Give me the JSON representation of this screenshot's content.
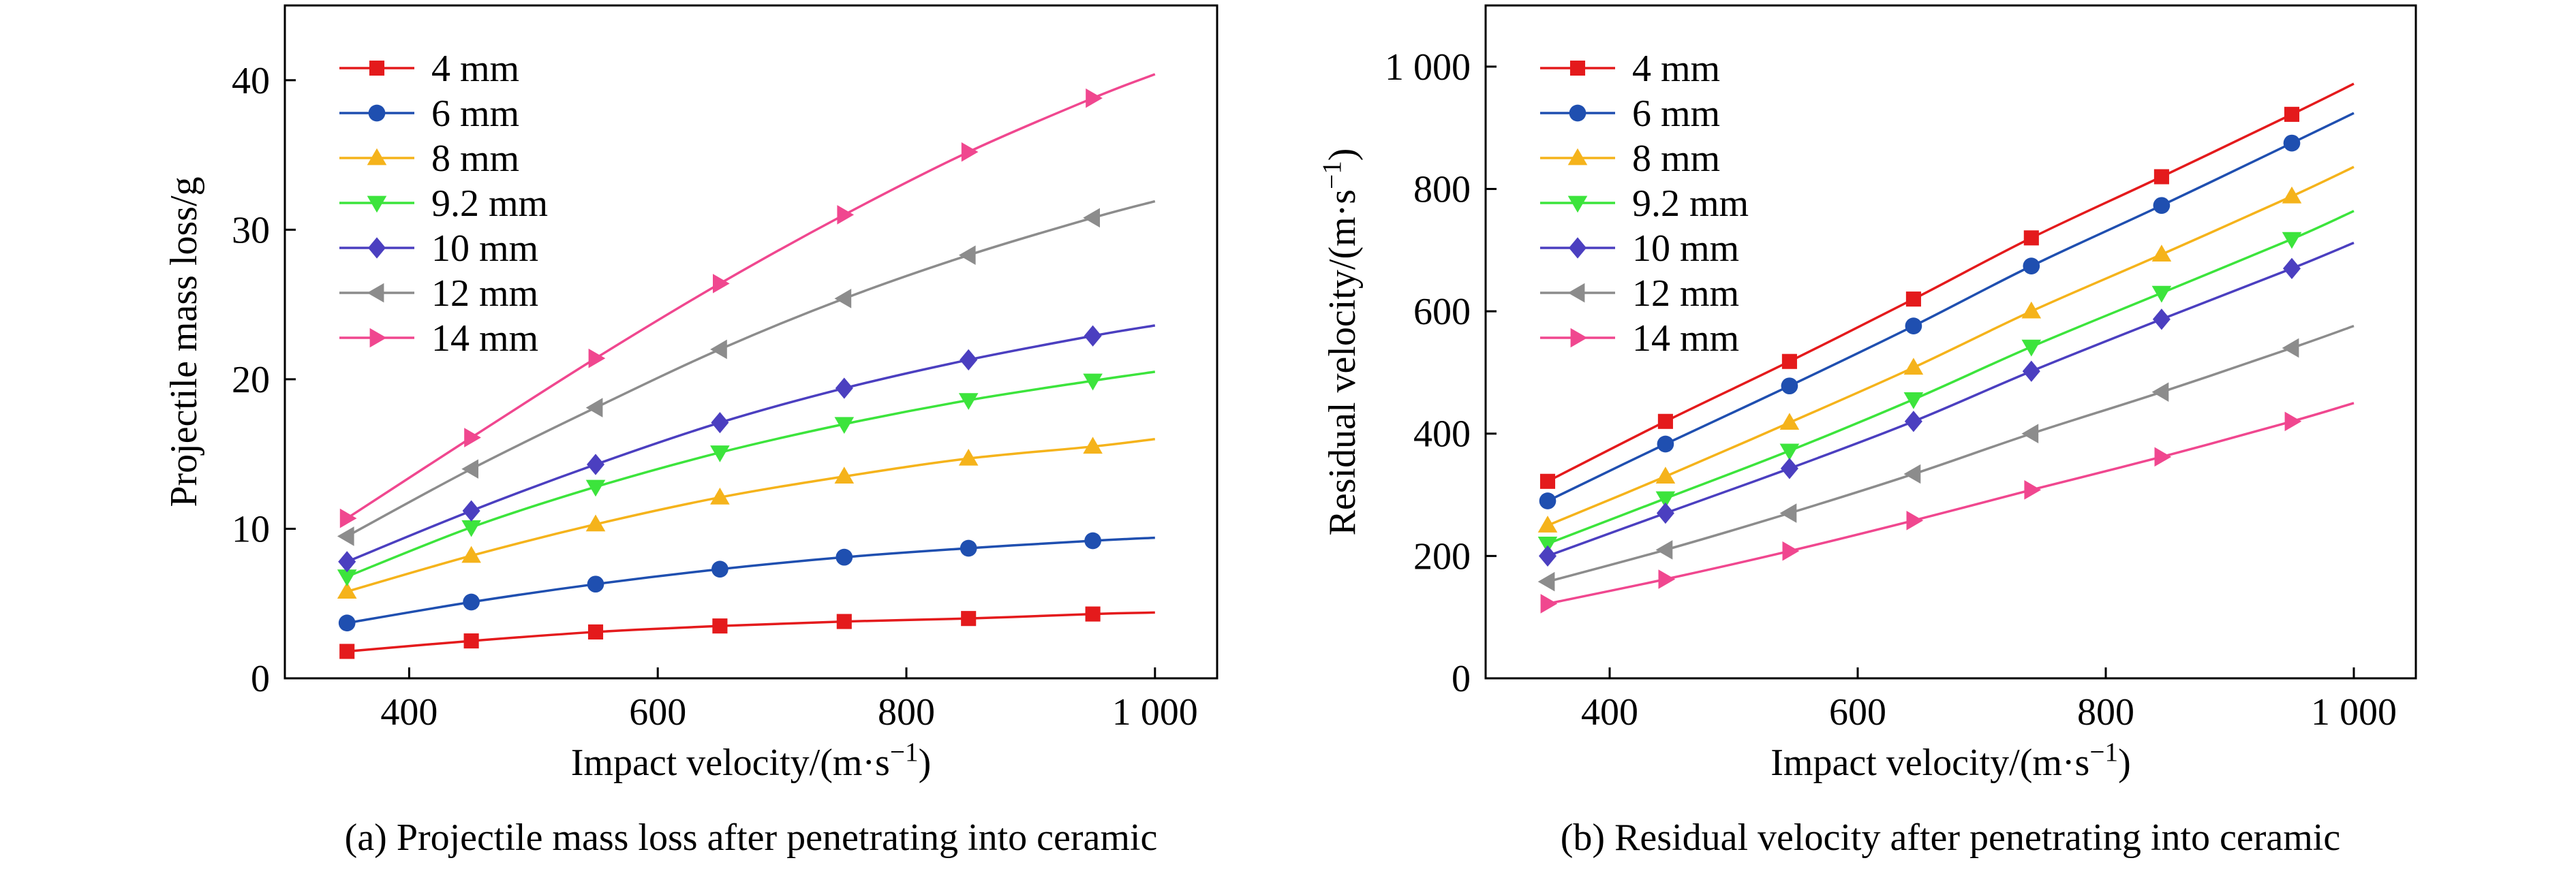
{
  "chart_data": [
    {
      "type": "line",
      "caption": "(a) Projectile mass loss after penetrating into ceramic",
      "xlabel": "Impact velocity/(m·s⁻¹)",
      "ylabel": "Projectile mass loss/g",
      "xlim": [
        300,
        1050
      ],
      "ylim": [
        0,
        45
      ],
      "xticks": [
        400,
        600,
        800,
        1000
      ],
      "xtick_labels": [
        "400",
        "600",
        "800",
        "1 000"
      ],
      "yticks": [
        0,
        10,
        20,
        30,
        40
      ],
      "ytick_labels": [
        "0",
        "10",
        "20",
        "30",
        "40"
      ],
      "grid": false,
      "legend_position": "top-left",
      "x": [
        350,
        450,
        550,
        650,
        750,
        850,
        950
      ],
      "series": [
        {
          "name": "4 mm",
          "color": "#e41a1c",
          "marker": "square",
          "values": [
            1.8,
            2.5,
            3.1,
            3.5,
            3.8,
            4.0,
            4.3
          ],
          "line_end": 4.4
        },
        {
          "name": "6 mm",
          "color": "#1f4fb0",
          "marker": "circle",
          "values": [
            3.7,
            5.1,
            6.3,
            7.3,
            8.1,
            8.7,
            9.2
          ],
          "line_end": 9.4
        },
        {
          "name": "8 mm",
          "color": "#f5b31b",
          "marker": "triangle-up",
          "values": [
            5.8,
            8.2,
            10.3,
            12.1,
            13.5,
            14.7,
            15.5
          ],
          "line_end": 16.0
        },
        {
          "name": "9.2 mm",
          "color": "#3ce43c",
          "marker": "triangle-down",
          "values": [
            6.8,
            10.1,
            12.8,
            15.1,
            17.0,
            18.6,
            19.9
          ],
          "line_end": 20.5
        },
        {
          "name": "10 mm",
          "color": "#4b3fc0",
          "marker": "diamond",
          "values": [
            7.8,
            11.2,
            14.3,
            17.1,
            19.4,
            21.3,
            22.9
          ],
          "line_end": 23.6
        },
        {
          "name": "12 mm",
          "color": "#8c8c8c",
          "marker": "triangle-left",
          "values": [
            9.5,
            14.0,
            18.1,
            22.0,
            25.4,
            28.3,
            30.8
          ],
          "line_end": 31.9
        },
        {
          "name": "14 mm",
          "color": "#f0478f",
          "marker": "triangle-right",
          "values": [
            10.7,
            16.1,
            21.4,
            26.4,
            31.0,
            35.2,
            38.8
          ],
          "line_end": 40.4
        }
      ]
    },
    {
      "type": "line",
      "caption": "(b) Residual velocity after penetrating into ceramic",
      "xlabel": "Impact velocity/(m·s⁻¹)",
      "ylabel": "Residual velocity/(m·s⁻¹)",
      "xlim": [
        300,
        1050
      ],
      "ylim": [
        0,
        1100
      ],
      "xticks": [
        400,
        600,
        800,
        1000
      ],
      "xtick_labels": [
        "400",
        "600",
        "800",
        "1 000"
      ],
      "yticks": [
        0,
        200,
        400,
        600,
        800,
        1000
      ],
      "ytick_labels": [
        "0",
        "200",
        "400",
        "600",
        "800",
        "1 000"
      ],
      "grid": false,
      "legend_position": "top-left",
      "x": [
        350,
        445,
        545,
        645,
        740,
        845,
        950
      ],
      "series": [
        {
          "name": "4 mm",
          "color": "#e41a1c",
          "marker": "square",
          "values": [
            322,
            420,
            518,
            620,
            720,
            820,
            922
          ],
          "line_end": 972
        },
        {
          "name": "6 mm",
          "color": "#1f4fb0",
          "marker": "circle",
          "values": [
            290,
            383,
            478,
            576,
            674,
            773,
            875
          ],
          "line_end": 924
        },
        {
          "name": "8 mm",
          "color": "#f5b31b",
          "marker": "triangle-up",
          "values": [
            250,
            330,
            418,
            508,
            600,
            693,
            788
          ],
          "line_end": 836
        },
        {
          "name": "9.2 mm",
          "color": "#3ce43c",
          "marker": "triangle-down",
          "values": [
            220,
            294,
            372,
            456,
            542,
            630,
            718
          ],
          "line_end": 764
        },
        {
          "name": "10 mm",
          "color": "#4b3fc0",
          "marker": "diamond",
          "values": [
            200,
            270,
            343,
            420,
            502,
            587,
            670
          ],
          "line_end": 712
        },
        {
          "name": "12 mm",
          "color": "#8c8c8c",
          "marker": "triangle-left",
          "values": [
            158,
            210,
            270,
            334,
            400,
            468,
            540
          ],
          "line_end": 576
        },
        {
          "name": "14 mm",
          "color": "#f0478f",
          "marker": "triangle-right",
          "values": [
            122,
            162,
            208,
            258,
            308,
            362,
            420
          ],
          "line_end": 450
        }
      ]
    }
  ]
}
